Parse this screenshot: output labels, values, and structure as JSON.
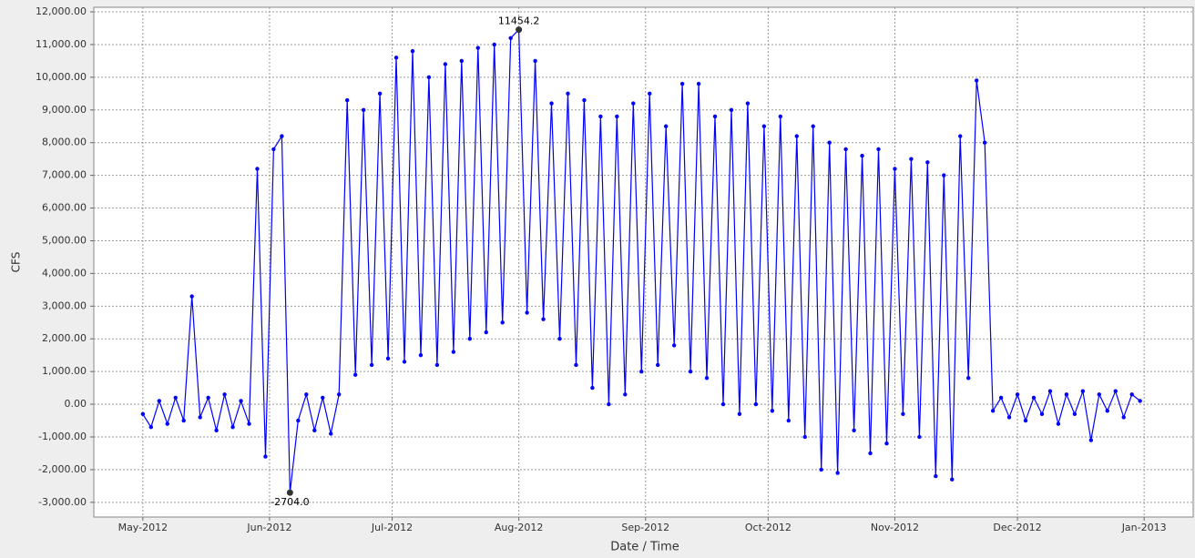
{
  "chart_data": {
    "type": "line",
    "xlabel": "Date / Time",
    "ylabel": "CFS",
    "x": [
      0,
      2,
      4,
      6,
      8,
      10,
      12,
      14,
      16,
      18,
      20,
      22,
      24,
      26,
      28,
      30,
      32,
      34,
      36,
      38,
      40,
      42,
      44,
      46,
      48,
      50,
      52,
      54,
      56,
      58,
      60,
      62,
      64,
      66,
      68,
      70,
      72,
      74,
      76,
      78,
      80,
      82,
      84,
      86,
      88,
      90,
      92,
      94,
      96,
      98,
      100,
      102,
      104,
      106,
      108,
      110,
      112,
      114,
      116,
      118,
      120,
      122,
      124,
      126,
      128,
      130,
      132,
      134,
      136,
      138,
      140,
      142,
      144,
      146,
      148,
      150,
      152,
      154,
      156,
      158,
      160,
      162,
      164,
      166,
      168,
      170,
      172,
      174,
      176,
      178,
      180,
      182,
      184,
      186,
      188,
      190,
      192,
      194,
      196,
      198,
      200,
      202,
      204,
      206,
      208,
      210,
      212,
      214,
      216,
      218,
      220,
      222,
      224,
      226,
      228,
      230,
      232,
      234,
      236,
      238,
      240,
      242,
      244
    ],
    "series": [
      {
        "name": "CFS",
        "color": "#0000ff",
        "values": [
          -300,
          -700,
          100,
          -600,
          200,
          -500,
          3300,
          -400,
          200,
          -800,
          300,
          -700,
          100,
          -600,
          7200,
          -1600,
          7800,
          8200,
          -2704,
          -500,
          300,
          -800,
          200,
          -900,
          300,
          9300,
          900,
          9000,
          1200,
          9500,
          1400,
          10600,
          1300,
          10800,
          1500,
          10000,
          1200,
          10400,
          1600,
          10500,
          2000,
          10900,
          2200,
          11000,
          2500,
          11200,
          11454.2,
          2800,
          10500,
          2600,
          9200,
          2000,
          9500,
          1200,
          9300,
          500,
          8800,
          0,
          8800,
          300,
          9200,
          1000,
          9500,
          1200,
          8500,
          1800,
          9800,
          1000,
          9800,
          800,
          8800,
          0,
          9000,
          -300,
          9200,
          0,
          8500,
          -200,
          8800,
          -500,
          8200,
          -1000,
          8500,
          -2000,
          8000,
          -2100,
          7800,
          -800,
          7600,
          -1500,
          7800,
          -1200,
          7200,
          -300,
          7500,
          -1000,
          7400,
          -2200,
          7000,
          -2300,
          8200,
          800,
          9900,
          8000,
          -200,
          200,
          -400,
          300,
          -500,
          200,
          -300,
          400,
          -600,
          300,
          -300,
          400,
          -1100,
          300,
          -200,
          400,
          -400,
          300,
          100
        ]
      }
    ],
    "annotations": [
      {
        "text": "11454.2"
      },
      {
        "text": "-2704.0"
      }
    ],
    "xlim": [
      -12,
      257
    ],
    "xticks": [
      {
        "value": 0,
        "label": "May-2012"
      },
      {
        "value": 31,
        "label": "Jun-2012"
      },
      {
        "value": 61,
        "label": "Jul-2012"
      },
      {
        "value": 92,
        "label": "Aug-2012"
      },
      {
        "value": 123,
        "label": "Sep-2012"
      },
      {
        "value": 153,
        "label": "Oct-2012"
      },
      {
        "value": 184,
        "label": "Nov-2012"
      },
      {
        "value": 214,
        "label": "Dec-2012"
      },
      {
        "value": 245,
        "label": "Jan-2013"
      }
    ],
    "ylim": [
      -3450,
      12140
    ],
    "yticks": [
      {
        "value": -3000,
        "label": "-3,000.00"
      },
      {
        "value": -2000,
        "label": "-2,000.00"
      },
      {
        "value": -1000,
        "label": "-1,000.00"
      },
      {
        "value": 0,
        "label": "0.00"
      },
      {
        "value": 1000,
        "label": "1,000.00"
      },
      {
        "value": 2000,
        "label": "2,000.00"
      },
      {
        "value": 3000,
        "label": "3,000.00"
      },
      {
        "value": 4000,
        "label": "4,000.00"
      },
      {
        "value": 5000,
        "label": "5,000.00"
      },
      {
        "value": 6000,
        "label": "6,000.00"
      },
      {
        "value": 7000,
        "label": "7,000.00"
      },
      {
        "value": 8000,
        "label": "8,000.00"
      },
      {
        "value": 9000,
        "label": "9,000.00"
      },
      {
        "value": 10000,
        "label": "10,000.00"
      },
      {
        "value": 11000,
        "label": "11,000.00"
      },
      {
        "value": 12000,
        "label": "12,000.00"
      }
    ],
    "grid": true
  }
}
